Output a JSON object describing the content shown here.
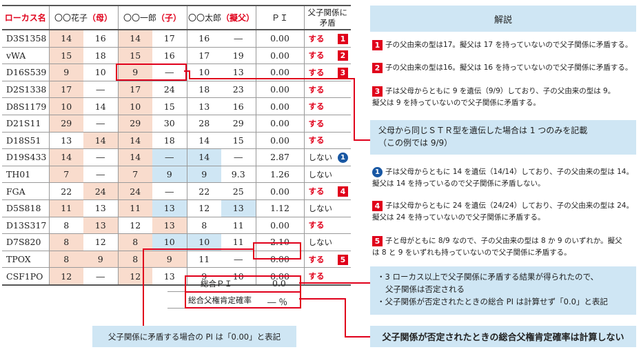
{
  "header": {
    "locus": "ローカス名",
    "mother": [
      "〇〇花子",
      "（母）"
    ],
    "child": [
      "〇〇一郎",
      "（子）"
    ],
    "father": [
      "〇〇太郎",
      "（擬父）"
    ],
    "pi": "ＰＩ",
    "conflict": [
      "父子関係に",
      "矛盾"
    ]
  },
  "rows": [
    {
      "locus": "D3S1358",
      "m1": "14",
      "m2": "16",
      "c1": "14",
      "c2": "17",
      "f1": "16",
      "f2": "―",
      "pi": "0.00",
      "conflict": "する",
      "mark": "1",
      "hl": {
        "m1": "pink",
        "c1": "pink"
      }
    },
    {
      "locus": "vWA",
      "m1": "15",
      "m2": "18",
      "c1": "15",
      "c2": "16",
      "f1": "17",
      "f2": "19",
      "pi": "0.00",
      "conflict": "する",
      "mark": "2",
      "hl": {
        "m1": "pink",
        "c1": "pink"
      }
    },
    {
      "locus": "D16S539",
      "m1": "9",
      "m2": "10",
      "c1": "9",
      "c2": "―",
      "f1": "10",
      "f2": "13",
      "pi": "0.00",
      "conflict": "する",
      "mark": "3",
      "hl": {
        "m1": "pink",
        "c1": "pink"
      }
    },
    {
      "locus": "D2S1338",
      "m1": "17",
      "m2": "―",
      "c1": "17",
      "c2": "24",
      "f1": "18",
      "f2": "23",
      "pi": "0.00",
      "conflict": "する",
      "mark": "",
      "hl": {
        "m1": "pink",
        "c1": "pink"
      }
    },
    {
      "locus": "D8S1179",
      "m1": "10",
      "m2": "14",
      "c1": "10",
      "c2": "15",
      "f1": "13",
      "f2": "16",
      "pi": "0.00",
      "conflict": "する",
      "mark": "",
      "hl": {
        "m1": "pink",
        "c1": "pink"
      }
    },
    {
      "locus": "D21S11",
      "m1": "29",
      "m2": "―",
      "c1": "29",
      "c2": "30",
      "f1": "28",
      "f2": "29",
      "pi": "0.00",
      "conflict": "する",
      "mark": "",
      "hl": {
        "m1": "pink",
        "c1": "pink"
      }
    },
    {
      "locus": "D18S51",
      "m1": "13",
      "m2": "14",
      "c1": "14",
      "c2": "18",
      "f1": "14",
      "f2": "15",
      "pi": "0.00",
      "conflict": "する",
      "mark": "",
      "hl": {
        "m2": "pink",
        "c1": "pink"
      }
    },
    {
      "locus": "D19S433",
      "m1": "14",
      "m2": "―",
      "c1": "14",
      "c2": "―",
      "f1": "14",
      "f2": "―",
      "pi": "2.87",
      "conflict": "しない",
      "mark": "c1",
      "hl": {
        "m1": "pink",
        "c1": "pink",
        "c2": "blue",
        "f1": "blue"
      }
    },
    {
      "locus": "TH01",
      "m1": "7",
      "m2": "―",
      "c1": "7",
      "c2": "9",
      "f1": "9",
      "f2": "9.3",
      "pi": "1.26",
      "conflict": "しない",
      "mark": "",
      "hl": {
        "m1": "pink",
        "c1": "pink",
        "c2": "blue",
        "f1": "blue"
      }
    },
    {
      "locus": "FGA",
      "m1": "22",
      "m2": "24",
      "c1": "24",
      "c2": "―",
      "f1": "22",
      "f2": "25",
      "pi": "0.00",
      "conflict": "する",
      "mark": "4",
      "hl": {
        "m2": "pink",
        "c1": "pink"
      }
    },
    {
      "locus": "D5S818",
      "m1": "11",
      "m2": "13",
      "c1": "11",
      "c2": "13",
      "f1": "12",
      "f2": "13",
      "pi": "1.12",
      "conflict": "しない",
      "mark": "",
      "hl": {
        "m1": "pink",
        "c1": "pink",
        "c2": "blue",
        "f2": "blue"
      }
    },
    {
      "locus": "D13S317",
      "m1": "8",
      "m2": "13",
      "c1": "12",
      "c2": "13",
      "f1": "8",
      "f2": "11",
      "pi": "0.00",
      "conflict": "する",
      "mark": "",
      "hl": {
        "m2": "pink",
        "c2": "pink"
      }
    },
    {
      "locus": "D7S820",
      "m1": "8",
      "m2": "12",
      "c1": "8",
      "c2": "10",
      "f1": "10",
      "f2": "11",
      "pi": "2.10",
      "conflict": "しない",
      "mark": "",
      "hl": {
        "m1": "pink",
        "c1": "pink",
        "c2": "blue",
        "f1": "blue"
      }
    },
    {
      "locus": "TPOX",
      "m1": "8",
      "m2": "9",
      "c1": "8",
      "c2": "9",
      "f1": "11",
      "f2": "―",
      "pi": "0.00",
      "conflict": "する",
      "mark": "5",
      "hl": {
        "m1": "pink",
        "m2": "pink",
        "c1": "pink",
        "c2": "pink"
      }
    },
    {
      "locus": "CSF1PO",
      "m1": "12",
      "m2": "―",
      "c1": "12",
      "c2": "13",
      "f1": "9",
      "f2": "10",
      "pi": "0.00",
      "conflict": "する",
      "mark": "",
      "hl": {
        "m1": "pink",
        "c1": "pink"
      }
    }
  ],
  "summary": {
    "total_pi_label": "総合ＰＩ",
    "total_pi_value": "0.0",
    "prob_label": "総合父権肯定確率",
    "prob_value": "― ％"
  },
  "explanation": {
    "title": "解説",
    "note1": "子の父由来の型は17。擬父は 17 を持っていないので父子関係に矛盾する。",
    "note2": "子の父由来の型は16。擬父は 16 を持っていないので父子関係に矛盾する。",
    "note3a": "子は父母からともに 9 を遺伝（9/9）しており、子の父由来の型は 9。",
    "note3b": "擬父は 9 を持っていないので父子関係に矛盾する。",
    "str_box_a": "父母から同じＳＴＲ型を遺伝した場合は 1 つのみを記載",
    "str_box_b": "（この例では 9/9）",
    "noteC1a": "子は父母からともに 14 を遺伝（14/14）しており、子の父由来の型は 14。",
    "noteC1b": "擬父は 14 を持っているので父子関係に矛盾しない。",
    "note4a": "子は父母からともに 24 を遺伝（24/24）しており、子の父由来の型は 24。",
    "note4b": "擬父は 24 を持っていないので父子関係に矛盾する。",
    "note5a": "子と母がともに 8/9 なので、子の父由来の型は 8 か 9 のいずれか。擬父",
    "note5b": "は 8 と 9 をいずれも持っていないので父子関係に矛盾する。",
    "conc1a": "・3 ローカス以上で父子関係に矛盾する結果が得られたので、",
    "conc1b": "父子関係は否定される",
    "conc2": "・父子関係が否定されたときの総合 PI は計算せず「0.0」と表記",
    "bottom_right": "父子関係が否定されたときの総合父権肯定確率は計算しない",
    "bottom_left": "父子関係に矛盾する場合の PI は「0.00」と表記"
  },
  "colors": {
    "accent_red": "#e0001b",
    "pink": "#f9dccd",
    "blue": "#cfe6f4",
    "navy": "#1857a3"
  }
}
